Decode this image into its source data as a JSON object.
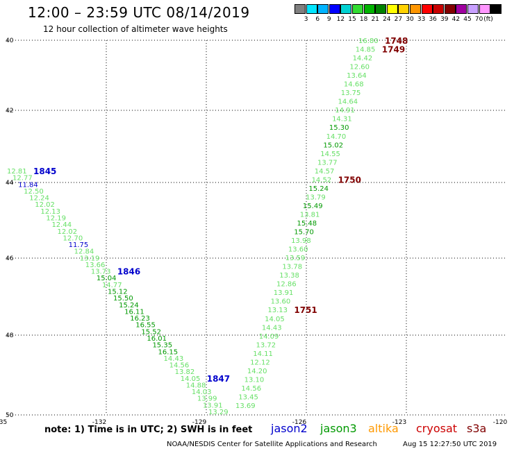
{
  "header": {
    "title": "12:00 – 23:59 UTC 08/14/2019",
    "subtitle": "12 hour collection of altimeter wave heights"
  },
  "legend": {
    "colors": [
      "#808080",
      "#00e6ff",
      "#00b4ff",
      "#0000ff",
      "#00d2d2",
      "#32dc32",
      "#00b400",
      "#008200",
      "#ffff00",
      "#ffd200",
      "#ff9600",
      "#ff0000",
      "#c80000",
      "#820000",
      "#a000a0",
      "#c8a0ff",
      "#ff96ff",
      "#000000"
    ],
    "ticks": [
      "3",
      "6",
      "9",
      "12",
      "15",
      "18",
      "21",
      "24",
      "27",
      "30",
      "33",
      "36",
      "39",
      "42",
      "45",
      "70"
    ],
    "unit": "(ft)"
  },
  "axes": {
    "x_ticks": [
      "-135",
      "-132",
      "-129",
      "-126",
      "-123",
      "-120"
    ],
    "y_ticks": [
      "40",
      "42",
      "44",
      "46",
      "48",
      "50"
    ]
  },
  "map_data": {
    "pass_west": {
      "labels": [
        [
          "12.81",
          "lg"
        ],
        [
          "12.77",
          "lg"
        ],
        [
          "11.84",
          "b"
        ],
        [
          "12.50",
          "lg"
        ],
        [
          "12.24",
          "lg"
        ],
        [
          "12.02",
          "lg"
        ],
        [
          "12.13",
          "lg"
        ],
        [
          "12.19",
          "lg"
        ],
        [
          "12.44",
          "lg"
        ],
        [
          "12.02",
          "lg"
        ],
        [
          "12.70",
          "lg"
        ],
        [
          "11.75",
          "b"
        ],
        [
          "12.84",
          "lg"
        ],
        [
          "13.19",
          "lg"
        ],
        [
          "13.66",
          "lg"
        ],
        [
          "13.73",
          "lg"
        ],
        [
          "15.04",
          "dg"
        ],
        [
          "14.77",
          "lg"
        ],
        [
          "15.12",
          "dg"
        ],
        [
          "15.50",
          "dg"
        ],
        [
          "15.24",
          "dg"
        ],
        [
          "16.11",
          "dg"
        ],
        [
          "16.23",
          "dg"
        ],
        [
          "16.55",
          "dg"
        ],
        [
          "15.52",
          "dg"
        ],
        [
          "16.01",
          "dg"
        ],
        [
          "15.35",
          "dg"
        ],
        [
          "16.15",
          "dg"
        ],
        [
          "14.43",
          "lg"
        ],
        [
          "14.56",
          "lg"
        ],
        [
          "13.82",
          "lg"
        ],
        [
          "14.05",
          "lg"
        ],
        [
          "14.88",
          "lg"
        ],
        [
          "14.03",
          "lg"
        ],
        [
          "13.99",
          "lg"
        ],
        [
          "13.91",
          "lg"
        ],
        [
          "13.29",
          "lg"
        ]
      ],
      "times": [
        {
          "time": "1845",
          "at": 0
        },
        {
          "time": "1846",
          "at": 15
        },
        {
          "time": "1847",
          "at": 31
        }
      ]
    },
    "pass_east": {
      "labels": [
        [
          "16.80",
          "lg"
        ],
        [
          "14.85",
          "lg"
        ],
        [
          "14.42",
          "lg"
        ],
        [
          "12.60",
          "lg"
        ],
        [
          "13.64",
          "lg"
        ],
        [
          "14.68",
          "lg"
        ],
        [
          "13.75",
          "lg"
        ],
        [
          "14.64",
          "lg"
        ],
        [
          "14.91",
          "lg"
        ],
        [
          "14.31",
          "lg"
        ],
        [
          "15.30",
          "dg"
        ],
        [
          "14.70",
          "lg"
        ],
        [
          "15.02",
          "dg"
        ],
        [
          "14.55",
          "lg"
        ],
        [
          "13.77",
          "lg"
        ],
        [
          "14.57",
          "lg"
        ],
        [
          "14.52",
          "lg"
        ],
        [
          "15.24",
          "dg"
        ],
        [
          "13.79",
          "lg"
        ],
        [
          "15.49",
          "dg"
        ],
        [
          "13.81",
          "lg"
        ],
        [
          "15.48",
          "dg"
        ],
        [
          "15.70",
          "dg"
        ],
        [
          "13.98",
          "lg"
        ],
        [
          "13.60",
          "lg"
        ],
        [
          "13.59",
          "lg"
        ],
        [
          "13.78",
          "lg"
        ],
        [
          "13.38",
          "lg"
        ],
        [
          "12.86",
          "lg"
        ],
        [
          "13.91",
          "lg"
        ],
        [
          "13.60",
          "lg"
        ],
        [
          "13.13",
          "lg"
        ],
        [
          "14.05",
          "lg"
        ],
        [
          "14.43",
          "lg"
        ],
        [
          "14.09",
          "lg"
        ],
        [
          "13.72",
          "lg"
        ],
        [
          "14.11",
          "lg"
        ],
        [
          "12.12",
          "lg"
        ],
        [
          "14.20",
          "lg"
        ],
        [
          "13.10",
          "lg"
        ],
        [
          "14.56",
          "lg"
        ],
        [
          "13.45",
          "lg"
        ],
        [
          "13.69",
          "lg"
        ]
      ],
      "times": [
        {
          "time": "1748",
          "at": 0
        },
        {
          "time": "1749",
          "at": 1
        },
        {
          "time": "1750",
          "at": 16
        },
        {
          "time": "1751",
          "at": 31
        }
      ]
    }
  },
  "note": "note: 1) Time is in UTC; 2) SWH is in feet",
  "satellites": [
    {
      "name": "jason2",
      "color": "#0000cc"
    },
    {
      "name": "jason3",
      "color": "#009900"
    },
    {
      "name": "altika",
      "color": "#ff9900"
    },
    {
      "name": "cryosat",
      "color": "#cc0000"
    },
    {
      "name": "s3a",
      "color": "#800000"
    }
  ],
  "footer": {
    "left": "NOAA/NESDIS Center for Satellite Applications and Research",
    "right": "Aug 15 12:27:50 UTC 2019"
  },
  "colors": {
    "light_green": "#66e066",
    "dark_green": "#009900",
    "blue": "#0000cc",
    "maroon": "#800000",
    "grid": "#000000"
  }
}
